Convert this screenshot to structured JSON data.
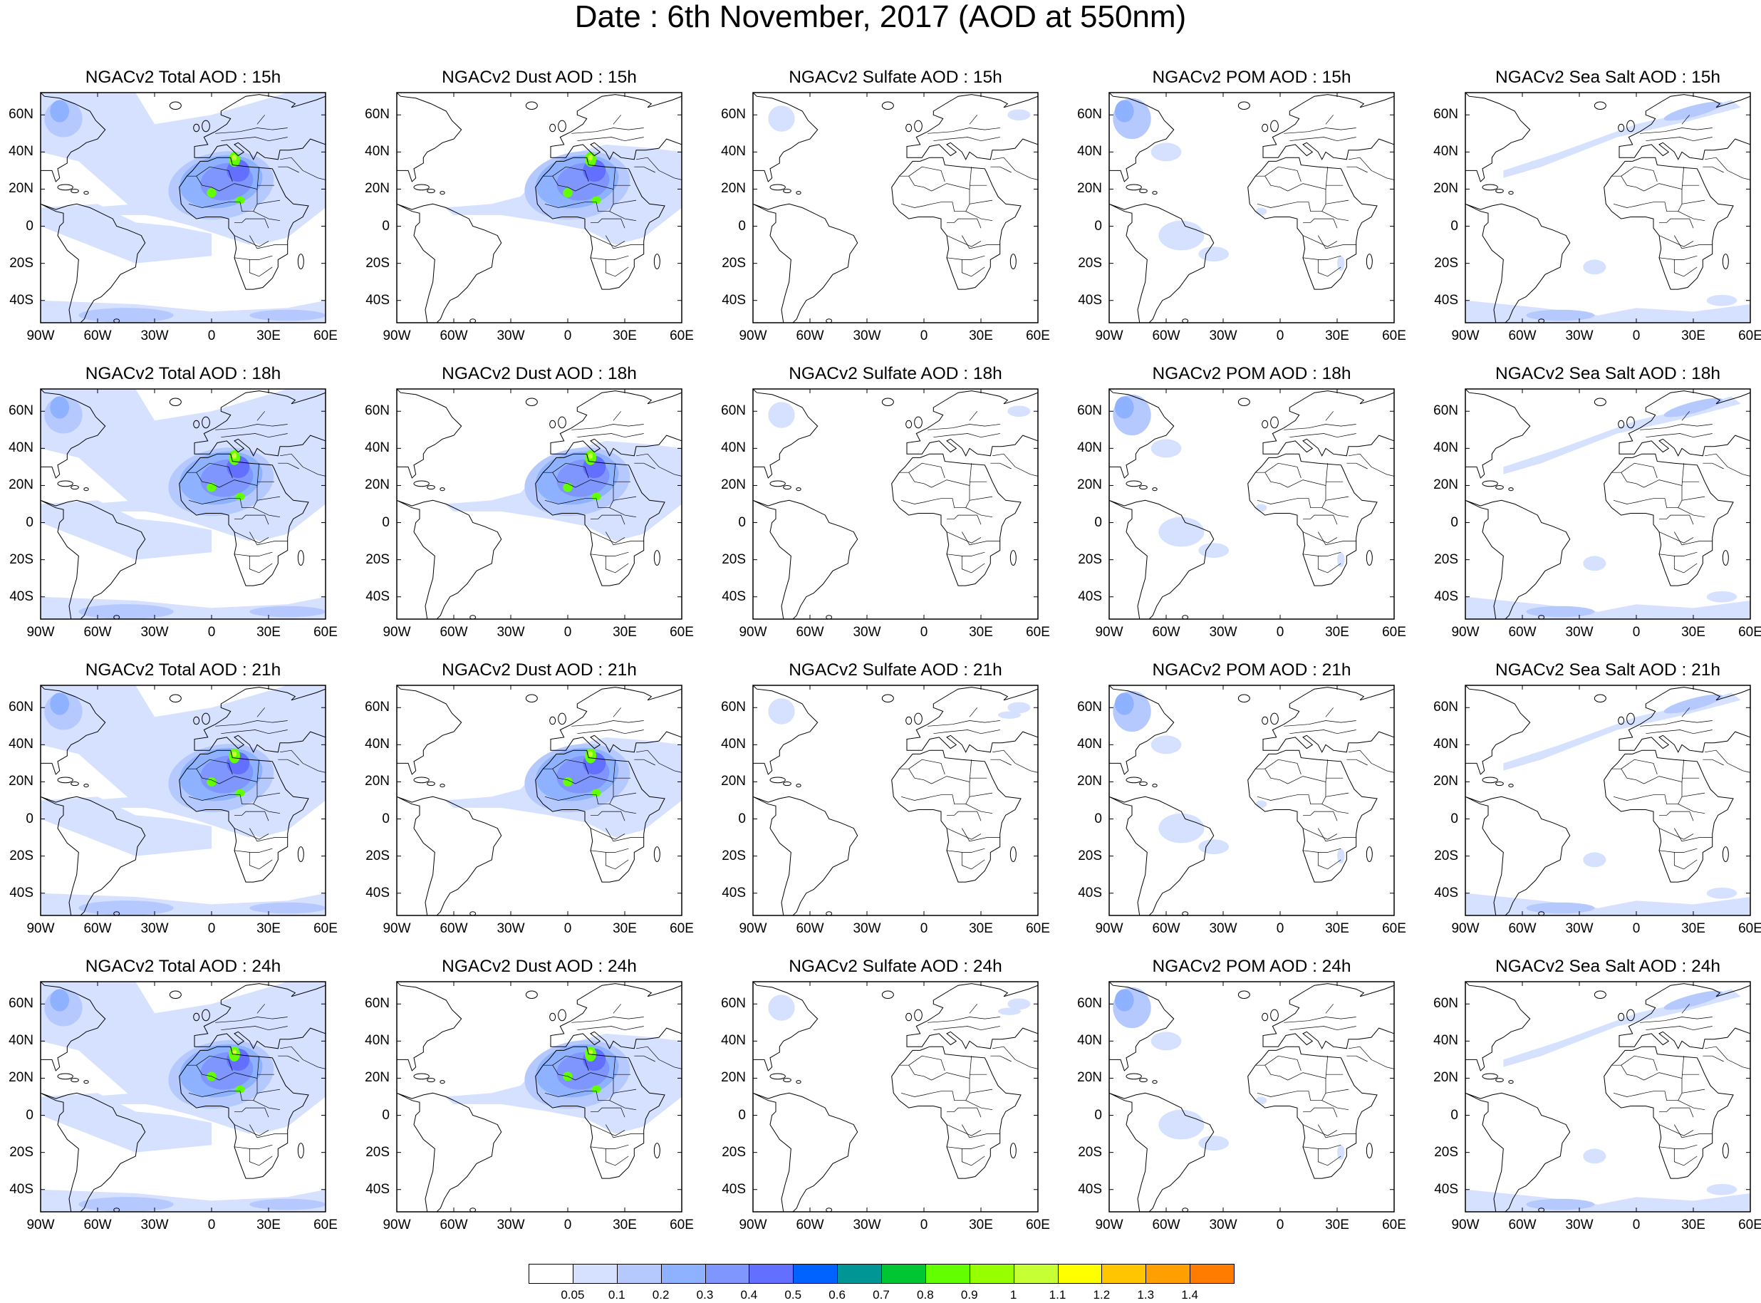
{
  "title": "Date : 6th November, 2017 (AOD at 550nm)",
  "axes": {
    "lon_ticks": [
      "90W",
      "60W",
      "30W",
      "0",
      "30E",
      "60E"
    ],
    "lat_ticks": [
      "60N",
      "40N",
      "20N",
      "0",
      "20S",
      "40S"
    ]
  },
  "map": {
    "lon_range": [
      -90,
      60
    ],
    "lat_range": [
      -52,
      72
    ],
    "coastlines": "black outlines of the Americas, Europe and Africa with country borders over Europe and Africa"
  },
  "panels": [
    {
      "title": "NGACv2 Total AOD : 15h",
      "species": "Total",
      "hour": "15h"
    },
    {
      "title": "NGACv2 Dust AOD : 15h",
      "species": "Dust",
      "hour": "15h"
    },
    {
      "title": "NGACv2 Sulfate AOD : 15h",
      "species": "Sulfate",
      "hour": "15h"
    },
    {
      "title": "NGACv2 POM AOD : 15h",
      "species": "POM",
      "hour": "15h"
    },
    {
      "title": "NGACv2 Sea Salt AOD : 15h",
      "species": "SeaSalt",
      "hour": "15h"
    },
    {
      "title": "NGACv2 Total AOD : 18h",
      "species": "Total",
      "hour": "18h"
    },
    {
      "title": "NGACv2 Dust AOD : 18h",
      "species": "Dust",
      "hour": "18h"
    },
    {
      "title": "NGACv2 Sulfate AOD : 18h",
      "species": "Sulfate",
      "hour": "18h"
    },
    {
      "title": "NGACv2 POM AOD : 18h",
      "species": "POM",
      "hour": "18h"
    },
    {
      "title": "NGACv2 Sea Salt AOD : 18h",
      "species": "SeaSalt",
      "hour": "18h"
    },
    {
      "title": "NGACv2 Total AOD : 21h",
      "species": "Total",
      "hour": "21h"
    },
    {
      "title": "NGACv2 Dust AOD : 21h",
      "species": "Dust",
      "hour": "21h"
    },
    {
      "title": "NGACv2 Sulfate AOD : 21h",
      "species": "Sulfate",
      "hour": "21h"
    },
    {
      "title": "NGACv2 POM AOD : 21h",
      "species": "POM",
      "hour": "21h"
    },
    {
      "title": "NGACv2 Sea Salt AOD : 21h",
      "species": "SeaSalt",
      "hour": "21h"
    },
    {
      "title": "NGACv2 Total AOD : 24h",
      "species": "Total",
      "hour": "24h"
    },
    {
      "title": "NGACv2 Dust AOD : 24h",
      "species": "Dust",
      "hour": "24h"
    },
    {
      "title": "NGACv2 Sulfate AOD : 24h",
      "species": "Sulfate",
      "hour": "24h"
    },
    {
      "title": "NGACv2 POM AOD : 24h",
      "species": "POM",
      "hour": "24h"
    },
    {
      "title": "NGACv2 Sea Salt  AOD : 24h",
      "species": "SeaSalt",
      "hour": "24h"
    }
  ],
  "legend": {
    "labels": [
      "0.05",
      "0.1",
      "0.2",
      "0.3",
      "0.4",
      "0.5",
      "0.6",
      "0.7",
      "0.8",
      "0.9",
      "1",
      "1.1",
      "1.2",
      "1.3",
      "1.4"
    ],
    "colors": [
      "#ffffff",
      "#d6e1ff",
      "#b5c9ff",
      "#8eb2ff",
      "#7f96ff",
      "#6370ff",
      "#0063ff",
      "#009696",
      "#00c633",
      "#63ff00",
      "#96ff00",
      "#c6ff33",
      "#ffff00",
      "#ffc600",
      "#ffa000",
      "#ff7c00",
      "#ff1900"
    ]
  }
}
